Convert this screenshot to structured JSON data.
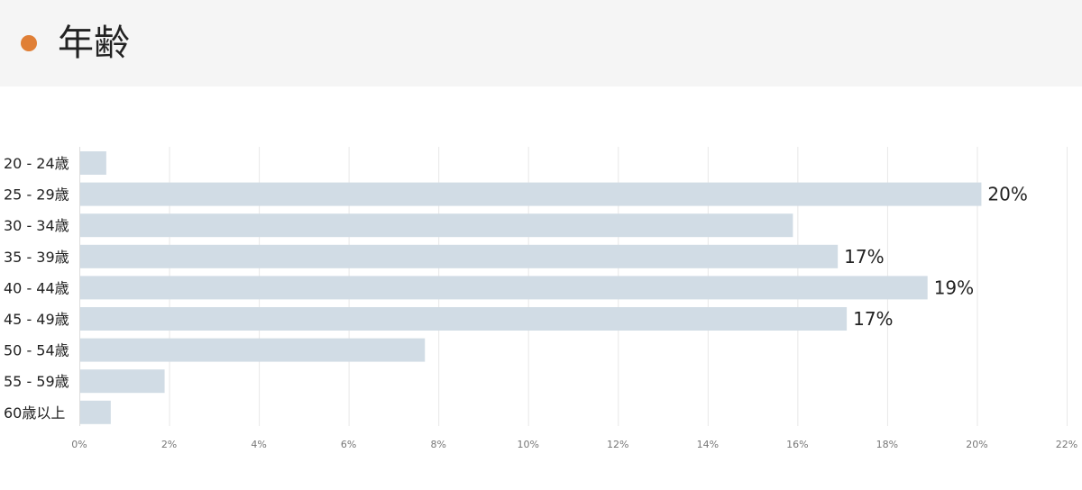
{
  "header": {
    "title": "年齢",
    "accent_color": "#e07f36",
    "background_color": "#f5f5f5"
  },
  "chart_data": {
    "type": "bar",
    "orientation": "horizontal",
    "title": "年齢",
    "categories": [
      "20 - 24歳",
      "25 - 29歳",
      "30 - 34歳",
      "35 - 39歳",
      "40 - 44歳",
      "45 - 49歳",
      "50 - 54歳",
      "55 - 59歳",
      "60歳以上"
    ],
    "values": [
      0.6,
      20.1,
      15.9,
      16.9,
      18.9,
      17.1,
      7.7,
      1.9,
      0.7
    ],
    "data_labels": [
      "",
      "20%",
      "",
      "17%",
      "19%",
      "17%",
      "",
      "",
      ""
    ],
    "xlim": [
      0,
      22
    ],
    "x_ticks": [
      0,
      2,
      4,
      6,
      8,
      10,
      12,
      14,
      16,
      18,
      20,
      22
    ],
    "x_tick_labels": [
      "0%",
      "2%",
      "4%",
      "6%",
      "8%",
      "10%",
      "12%",
      "14%",
      "16%",
      "18%",
      "20%",
      "22%"
    ],
    "xlabel": "",
    "ylabel": "",
    "grid": true,
    "bar_color": "#d1dce5",
    "grid_color": "#e8e8e8"
  }
}
